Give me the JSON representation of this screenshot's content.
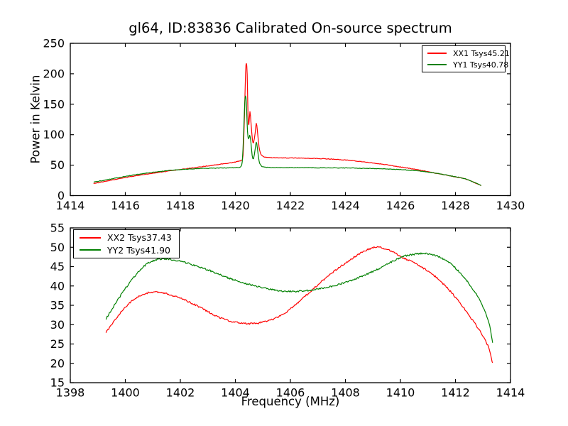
{
  "figure": {
    "title": "gl64, ID:83836 Calibrated On-source spectrum"
  },
  "chart_data": [
    {
      "type": "line",
      "title": "gl64, ID:83836 Calibrated On-source spectrum",
      "xlabel": "",
      "ylabel": "Power in Kelvin",
      "xlim": [
        1414,
        1430
      ],
      "ylim": [
        0,
        250
      ],
      "xticks": [
        1414,
        1416,
        1418,
        1420,
        1422,
        1424,
        1426,
        1428,
        1430
      ],
      "yticks": [
        0,
        50,
        100,
        150,
        200,
        250
      ],
      "grid": false,
      "legend": {
        "position": "upper right",
        "entries": [
          {
            "label": "XX1 Tsys45.21",
            "color": "#ff0000"
          },
          {
            "label": "YY1 Tsys40.78",
            "color": "#008000"
          }
        ]
      },
      "series": [
        {
          "name": "XX1 Tsys45.21",
          "color": "#ff0000",
          "points": [
            [
              1414.85,
              19.8
            ],
            [
              1415.4,
              24.5
            ],
            [
              1416.0,
              29.5
            ],
            [
              1416.6,
              34.0
            ],
            [
              1417.2,
              38.0
            ],
            [
              1417.8,
              41.8
            ],
            [
              1418.4,
              45.2
            ],
            [
              1419.0,
              48.8
            ],
            [
              1419.5,
              51.8
            ],
            [
              1419.9,
              54.3
            ],
            [
              1420.1,
              56.2
            ],
            [
              1420.22,
              58.5
            ],
            [
              1420.28,
              66
            ],
            [
              1420.33,
              130
            ],
            [
              1420.37,
              201
            ],
            [
              1420.4,
              217
            ],
            [
              1420.43,
              199
            ],
            [
              1420.46,
              131
            ],
            [
              1420.49,
              116
            ],
            [
              1420.53,
              138
            ],
            [
              1420.57,
              118
            ],
            [
              1420.62,
              92
            ],
            [
              1420.66,
              87
            ],
            [
              1420.72,
              103
            ],
            [
              1420.76,
              119
            ],
            [
              1420.8,
              107
            ],
            [
              1420.86,
              80
            ],
            [
              1420.93,
              68
            ],
            [
              1421.05,
              63.5
            ],
            [
              1421.3,
              62.3
            ],
            [
              1421.8,
              61.9
            ],
            [
              1422.4,
              61.6
            ],
            [
              1423.0,
              60.9
            ],
            [
              1423.6,
              59.6
            ],
            [
              1424.2,
              57.6
            ],
            [
              1424.8,
              54.6
            ],
            [
              1425.4,
              51.2
            ],
            [
              1426.0,
              47.0
            ],
            [
              1426.6,
              42.6
            ],
            [
              1427.2,
              37.6
            ],
            [
              1427.8,
              32.4
            ],
            [
              1428.4,
              26.6
            ],
            [
              1428.93,
              16.2
            ]
          ]
        },
        {
          "name": "YY1 Tsys40.78",
          "color": "#008000",
          "points": [
            [
              1414.85,
              22.0
            ],
            [
              1415.4,
              26.5
            ],
            [
              1416.0,
              31.5
            ],
            [
              1416.6,
              35.8
            ],
            [
              1417.2,
              39.3
            ],
            [
              1417.8,
              42.0
            ],
            [
              1418.4,
              43.9
            ],
            [
              1419.0,
              44.9
            ],
            [
              1419.6,
              45.4
            ],
            [
              1420.05,
              45.9
            ],
            [
              1420.18,
              47.2
            ],
            [
              1420.25,
              56
            ],
            [
              1420.3,
              102
            ],
            [
              1420.34,
              151
            ],
            [
              1420.37,
              163.5
            ],
            [
              1420.4,
              152
            ],
            [
              1420.44,
              106
            ],
            [
              1420.48,
              93
            ],
            [
              1420.52,
              99
            ],
            [
              1420.56,
              90
            ],
            [
              1420.61,
              66
            ],
            [
              1420.66,
              60.5
            ],
            [
              1420.72,
              77
            ],
            [
              1420.76,
              88
            ],
            [
              1420.8,
              78
            ],
            [
              1420.86,
              57
            ],
            [
              1420.93,
              49.5
            ],
            [
              1421.05,
              46.8
            ],
            [
              1421.5,
              46.0
            ],
            [
              1422.2,
              45.9
            ],
            [
              1423.0,
              45.7
            ],
            [
              1423.8,
              45.4
            ],
            [
              1424.6,
              44.9
            ],
            [
              1425.3,
              44.1
            ],
            [
              1426.0,
              42.7
            ],
            [
              1426.6,
              40.8
            ],
            [
              1427.2,
              37.4
            ],
            [
              1427.8,
              32.6
            ],
            [
              1428.4,
              26.9
            ],
            [
              1428.93,
              16.5
            ]
          ]
        }
      ]
    },
    {
      "type": "line",
      "title": "",
      "xlabel": "Frequency (MHz)",
      "ylabel": "",
      "xlim": [
        1398,
        1414
      ],
      "ylim": [
        15,
        55
      ],
      "xticks": [
        1398,
        1400,
        1402,
        1404,
        1406,
        1408,
        1410,
        1412,
        1414
      ],
      "yticks": [
        15,
        20,
        25,
        30,
        35,
        40,
        45,
        50,
        55
      ],
      "grid": false,
      "legend": {
        "position": "upper left",
        "entries": [
          {
            "label": "XX2 Tsys37.43",
            "color": "#ff0000"
          },
          {
            "label": "YY2 Tsys41.90",
            "color": "#008000"
          }
        ]
      },
      "series": [
        {
          "name": "XX2 Tsys37.43",
          "color": "#ff0000",
          "points": [
            [
              1399.3,
              28.0
            ],
            [
              1399.6,
              31.0
            ],
            [
              1400.0,
              34.5
            ],
            [
              1400.4,
              36.9
            ],
            [
              1400.8,
              38.2
            ],
            [
              1401.1,
              38.4
            ],
            [
              1401.5,
              38.0
            ],
            [
              1401.9,
              37.1
            ],
            [
              1402.4,
              35.6
            ],
            [
              1402.9,
              33.8
            ],
            [
              1403.4,
              31.9
            ],
            [
              1403.9,
              30.8
            ],
            [
              1404.4,
              30.3
            ],
            [
              1404.9,
              30.5
            ],
            [
              1405.4,
              31.5
            ],
            [
              1405.9,
              33.5
            ],
            [
              1406.4,
              36.5
            ],
            [
              1406.9,
              39.7
            ],
            [
              1407.4,
              42.7
            ],
            [
              1407.9,
              45.4
            ],
            [
              1408.4,
              47.8
            ],
            [
              1408.8,
              49.4
            ],
            [
              1409.2,
              50.0
            ],
            [
              1409.7,
              48.9
            ],
            [
              1410.1,
              47.3
            ],
            [
              1410.5,
              45.9
            ],
            [
              1410.9,
              44.3
            ],
            [
              1411.3,
              42.2
            ],
            [
              1411.7,
              39.5
            ],
            [
              1412.1,
              36.2
            ],
            [
              1412.5,
              32.4
            ],
            [
              1412.9,
              28.2
            ],
            [
              1413.2,
              24.2
            ],
            [
              1413.35,
              20.0
            ]
          ]
        },
        {
          "name": "YY2 Tsys41.90",
          "color": "#008000",
          "points": [
            [
              1399.3,
              31.5
            ],
            [
              1399.6,
              35.0
            ],
            [
              1400.0,
              39.3
            ],
            [
              1400.4,
              43.0
            ],
            [
              1400.8,
              45.8
            ],
            [
              1401.1,
              46.7
            ],
            [
              1401.4,
              47.0
            ],
            [
              1401.8,
              46.7
            ],
            [
              1402.2,
              46.0
            ],
            [
              1402.7,
              44.9
            ],
            [
              1403.2,
              43.6
            ],
            [
              1403.7,
              42.2
            ],
            [
              1404.2,
              41.0
            ],
            [
              1404.7,
              40.0
            ],
            [
              1405.2,
              39.2
            ],
            [
              1405.7,
              38.7
            ],
            [
              1406.2,
              38.6
            ],
            [
              1406.7,
              38.9
            ],
            [
              1407.2,
              39.5
            ],
            [
              1407.7,
              40.3
            ],
            [
              1408.2,
              41.4
            ],
            [
              1408.7,
              42.8
            ],
            [
              1409.2,
              44.4
            ],
            [
              1409.7,
              46.3
            ],
            [
              1410.1,
              47.6
            ],
            [
              1410.5,
              48.2
            ],
            [
              1410.9,
              48.4
            ],
            [
              1411.3,
              47.8
            ],
            [
              1411.7,
              46.4
            ],
            [
              1412.1,
              43.9
            ],
            [
              1412.5,
              40.5
            ],
            [
              1412.9,
              36.1
            ],
            [
              1413.2,
              30.9
            ],
            [
              1413.35,
              25.5
            ]
          ]
        }
      ]
    }
  ]
}
